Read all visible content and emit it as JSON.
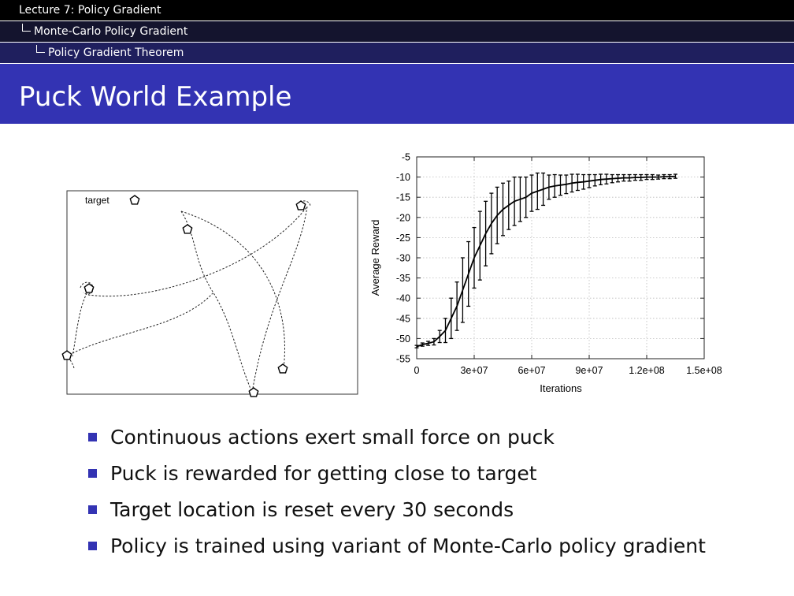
{
  "nav": {
    "level1": "Lecture 7: Policy Gradient",
    "level2": "Monte-Carlo Policy Gradient",
    "level3": "Policy Gradient Theorem"
  },
  "slide": {
    "title": "Puck World Example"
  },
  "bullets": [
    "Continuous actions exert small force on puck",
    "Puck is rewarded for getting close to target",
    "Target location is reset every 30 seconds",
    "Policy is trained using variant of Monte-Carlo policy gradient"
  ],
  "puck_world": {
    "legend_label": "target"
  },
  "chart_data": {
    "type": "line",
    "xlabel": "Iterations",
    "ylabel": "Average Reward",
    "xlim": [
      0,
      150000000
    ],
    "ylim": [
      -55,
      -5
    ],
    "x_ticks": [
      "0",
      "3e+07",
      "6e+07",
      "9e+07",
      "1.2e+08",
      "1.5e+08"
    ],
    "y_ticks": [
      "-5",
      "-10",
      "-15",
      "-20",
      "-25",
      "-30",
      "-35",
      "-40",
      "-45",
      "-50",
      "-55"
    ],
    "grid": true,
    "series": [
      {
        "x": [
          0,
          3000000,
          6000000,
          9000000,
          12000000,
          15000000,
          18000000,
          21000000,
          24000000,
          27000000,
          30000000,
          33000000,
          36000000,
          39000000,
          42000000,
          45000000,
          48000000,
          51000000,
          54000000,
          57000000,
          60000000,
          63000000,
          66000000,
          69000000,
          72000000,
          75000000,
          78000000,
          81000000,
          84000000,
          87000000,
          90000000,
          93000000,
          96000000,
          99000000,
          102000000,
          105000000,
          108000000,
          111000000,
          114000000,
          117000000,
          120000000,
          123000000,
          126000000,
          129000000,
          132000000,
          135000000
        ],
        "values": [
          -52,
          -51.5,
          -51.2,
          -50.8,
          -49.5,
          -48,
          -45,
          -42,
          -38,
          -34,
          -30,
          -27,
          -24,
          -21.5,
          -19.5,
          -18,
          -17,
          -16,
          -15.5,
          -15,
          -14,
          -13.5,
          -13,
          -12.5,
          -12.2,
          -12,
          -11.8,
          -11.5,
          -11.3,
          -11.2,
          -11,
          -10.8,
          -10.6,
          -10.5,
          -10.4,
          -10.3,
          -10.2,
          -10.2,
          -10.1,
          -10.1,
          -10,
          -10,
          -10,
          -9.9,
          -9.9,
          -9.8
        ],
        "error": [
          0.3,
          0.4,
          0.5,
          0.8,
          1.5,
          3,
          5,
          6,
          8,
          8,
          7.5,
          8.5,
          8,
          7.5,
          7,
          6.5,
          6,
          6,
          5.5,
          5,
          4.5,
          4.5,
          4,
          3,
          2.8,
          2.5,
          2.3,
          2.2,
          2,
          1.8,
          1.6,
          1.4,
          1.3,
          1.2,
          1,
          0.9,
          0.8,
          0.8,
          0.7,
          0.7,
          0.6,
          0.6,
          0.5,
          0.5,
          0.5,
          0.5
        ]
      }
    ]
  }
}
